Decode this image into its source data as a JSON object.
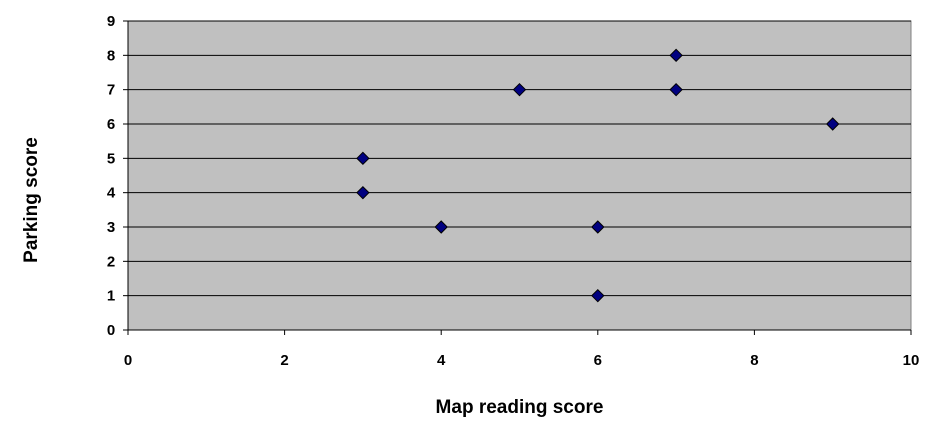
{
  "chart_data": {
    "type": "scatter",
    "title": "",
    "xlabel": "Map reading score",
    "ylabel": "Parking score",
    "xlim": [
      0,
      10
    ],
    "ylim": [
      0,
      9
    ],
    "x_ticks": [
      0,
      2,
      4,
      6,
      8,
      10
    ],
    "y_ticks": [
      0,
      1,
      2,
      3,
      4,
      5,
      6,
      7,
      8,
      9
    ],
    "grid": "horizontal",
    "legend": "none",
    "plot_background": "#c0c0c0",
    "marker": "diamond",
    "marker_color": "#000080",
    "series": [
      {
        "points": [
          {
            "x": 3,
            "y": 4
          },
          {
            "x": 3,
            "y": 5
          },
          {
            "x": 4,
            "y": 3
          },
          {
            "x": 5,
            "y": 7
          },
          {
            "x": 6,
            "y": 1
          },
          {
            "x": 6,
            "y": 3
          },
          {
            "x": 7,
            "y": 7
          },
          {
            "x": 7,
            "y": 8
          },
          {
            "x": 9,
            "y": 6
          }
        ]
      }
    ]
  }
}
